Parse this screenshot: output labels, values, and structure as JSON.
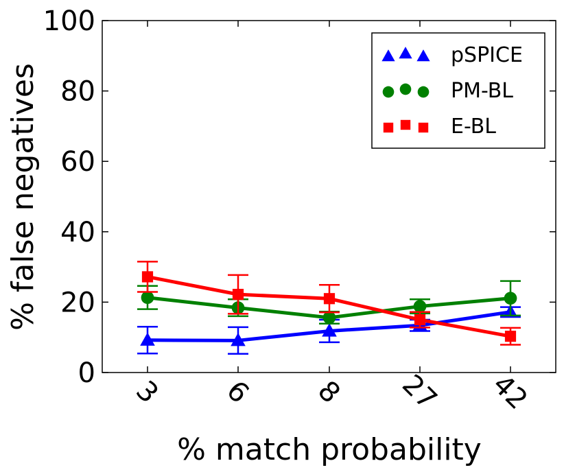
{
  "chart_data": {
    "type": "line",
    "title": "",
    "xlabel": "% match probability",
    "ylabel": "% false negatives",
    "categories": [
      "3",
      "6",
      "8",
      "27",
      "42"
    ],
    "ylim": [
      0,
      100
    ],
    "yticks": [
      "0",
      "20",
      "40",
      "60",
      "80",
      "100"
    ],
    "legend_position": "top-right",
    "series": [
      {
        "name": "pSPICE",
        "color": "#0000ff",
        "marker": "triangle",
        "values": [
          9.2,
          9.1,
          11.8,
          13.4,
          17.2
        ],
        "errors": [
          3.8,
          3.8,
          3.2,
          1.6,
          1.4
        ]
      },
      {
        "name": "PM-BL",
        "color": "#008000",
        "marker": "circle",
        "values": [
          21.3,
          18.4,
          15.6,
          18.8,
          21.1
        ],
        "errors": [
          3.3,
          2.4,
          1.7,
          2.0,
          4.9
        ]
      },
      {
        "name": "E-BL",
        "color": "#ff0000",
        "marker": "square",
        "values": [
          27.2,
          22.2,
          21.0,
          15.0,
          10.3
        ],
        "errors": [
          4.3,
          5.5,
          3.9,
          2.2,
          2.4
        ]
      }
    ]
  }
}
